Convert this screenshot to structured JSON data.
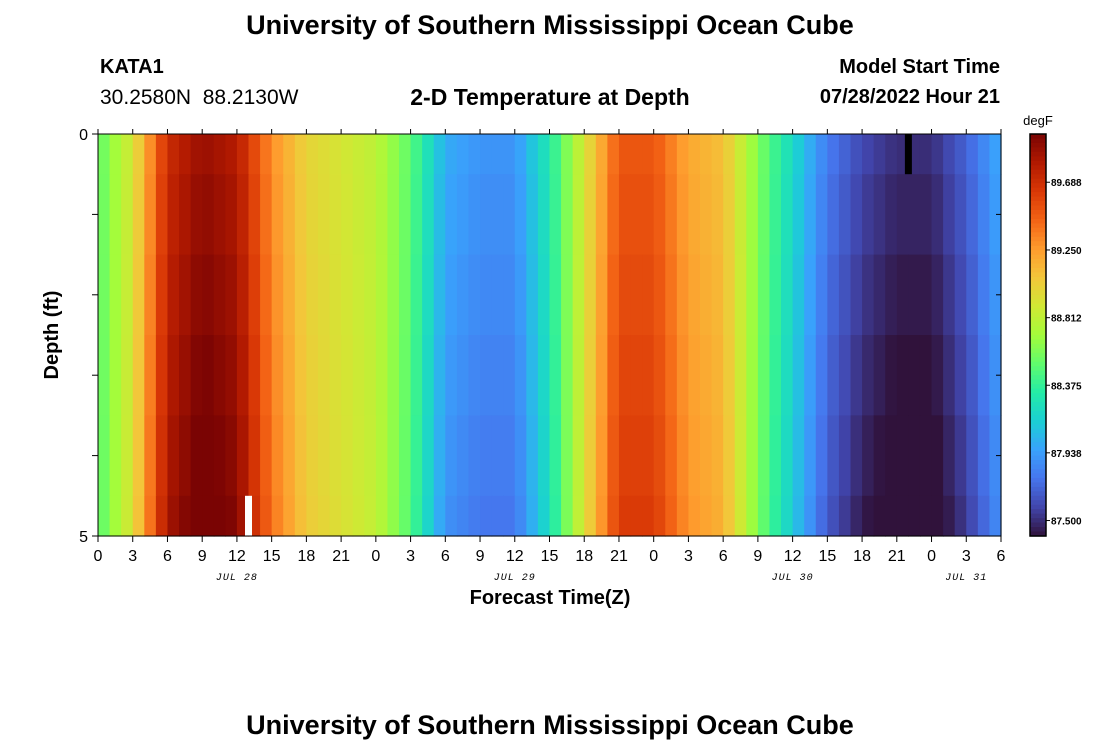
{
  "header": {
    "title": "University of Southern Mississippi Ocean Cube",
    "station_id": "KATA1",
    "station_coords": "30.2580N  88.2130W",
    "plot_title": "2-D Temperature at Depth",
    "model_start_label": "Model Start Time",
    "model_start_value": "07/28/2022 Hour 21"
  },
  "footer": {
    "title": "University of Southern Mississippi Ocean Cube"
  },
  "chart_data": {
    "type": "heatmap",
    "xlabel": "Forecast Time(Z)",
    "ylabel": "Depth (ft)",
    "ylim": [
      0,
      5
    ],
    "y_tick_labels": [
      "0",
      "5"
    ],
    "x_tick_labels": [
      "0",
      "3",
      "6",
      "9",
      "12",
      "15",
      "18",
      "21",
      "0",
      "3",
      "6",
      "9",
      "12",
      "15",
      "18",
      "21",
      "0",
      "3",
      "6",
      "9",
      "12",
      "15",
      "18",
      "21",
      "0",
      "3",
      "6"
    ],
    "date_labels": [
      {
        "label": "JUL 28",
        "hour": 12
      },
      {
        "label": "JUL 29",
        "hour": 36
      },
      {
        "label": "JUL 30",
        "hour": 60
      },
      {
        "label": "JUL 31",
        "hour": 75
      }
    ],
    "xlim_hours": [
      0,
      78
    ],
    "depth_layers": [
      0,
      1,
      2,
      3,
      4,
      5
    ],
    "colorbar": {
      "unit": "degF",
      "min": 87.4,
      "max": 90.0,
      "tick_labels": [
        "89.688",
        "89.250",
        "88.812",
        "88.375",
        "87.938",
        "87.500"
      ],
      "tick_values": [
        89.688,
        89.25,
        88.812,
        88.375,
        87.938,
        87.5
      ]
    },
    "surface_series": {
      "hours": [
        0,
        3,
        6,
        9,
        12,
        15,
        18,
        21,
        24,
        27,
        30,
        33,
        36,
        39,
        42,
        45,
        48,
        51,
        54,
        57,
        60,
        63,
        66,
        69,
        72,
        75,
        78
      ],
      "values": [
        88.5,
        88.9,
        89.7,
        89.9,
        89.8,
        89.3,
        89.0,
        88.9,
        88.8,
        88.5,
        88.0,
        87.9,
        87.9,
        88.3,
        88.9,
        89.5,
        89.5,
        89.2,
        89.1,
        88.6,
        88.2,
        87.8,
        87.6,
        87.5,
        87.5,
        87.7,
        88.0
      ]
    },
    "markers": [
      {
        "hour": 70,
        "depth_from": 0,
        "depth_to": 0.5,
        "color": "#000000"
      },
      {
        "hour": 13,
        "depth_from": 4.5,
        "depth_to": 5,
        "color": "#ffffff"
      }
    ],
    "colormap": [
      "#30123b",
      "#4145ab",
      "#4675ed",
      "#39a2fc",
      "#1bcfd4",
      "#24eca6",
      "#61fc6c",
      "#a4fc3b",
      "#d1e834",
      "#f3c63a",
      "#fe9b2d",
      "#f36315",
      "#d93806",
      "#b11901",
      "#7a0403"
    ]
  }
}
